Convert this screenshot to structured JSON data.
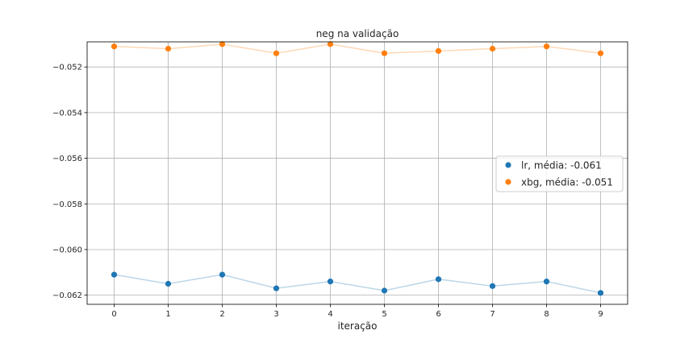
{
  "chart_data": {
    "type": "line",
    "title": "neg na validação",
    "xlabel": "iteração",
    "ylabel": "",
    "x": [
      0,
      1,
      2,
      3,
      4,
      5,
      6,
      7,
      8,
      9
    ],
    "xlim": [
      -0.5,
      9.5
    ],
    "ylim": [
      -0.0624,
      -0.0509
    ],
    "yticks": [
      -0.052,
      -0.054,
      -0.056,
      -0.058,
      -0.06,
      -0.062
    ],
    "ytick_labels": [
      "−0.052",
      "−0.054",
      "−0.056",
      "−0.058",
      "−0.060",
      "−0.062"
    ],
    "grid": true,
    "legend_position": "center-right",
    "series": [
      {
        "name": "lr, média: -0.061",
        "color": "#1f77b4",
        "values": [
          -0.0611,
          -0.0615,
          -0.0611,
          -0.0617,
          -0.0614,
          -0.0618,
          -0.0613,
          -0.0616,
          -0.0614,
          -0.0619
        ]
      },
      {
        "name": "xbg, média: -0.051",
        "color": "#ff7f0e",
        "values": [
          -0.0511,
          -0.0512,
          -0.051,
          -0.0514,
          -0.051,
          -0.0514,
          -0.0513,
          -0.0512,
          -0.0511,
          -0.0514
        ]
      }
    ]
  }
}
